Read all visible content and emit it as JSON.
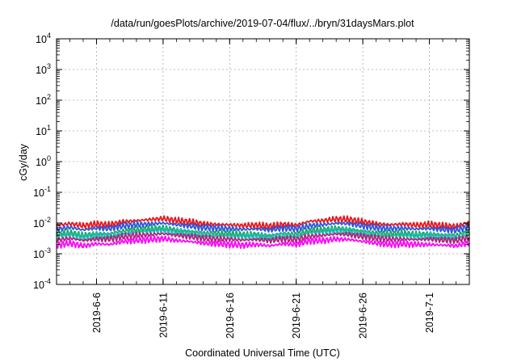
{
  "chart_data": {
    "type": "line",
    "title": "/data/run/goesPlots/archive/2019-07-04/flux/../bryn/31daysMars.plot",
    "xlabel": "Coordinated Universal Time (UTC)",
    "ylabel": "cGy/day",
    "yscale": "log",
    "ylim_exp": [
      -4,
      4
    ],
    "y_ticks": [
      {
        "base": "10",
        "exp": "-4"
      },
      {
        "base": "10",
        "exp": "-3"
      },
      {
        "base": "10",
        "exp": "-2"
      },
      {
        "base": "10",
        "exp": "-1"
      },
      {
        "base": "10",
        "exp": "0"
      },
      {
        "base": "10",
        "exp": "1"
      },
      {
        "base": "10",
        "exp": "2"
      },
      {
        "base": "10",
        "exp": "3"
      },
      {
        "base": "10",
        "exp": "4"
      }
    ],
    "xlim": [
      "2019-06-03",
      "2019-07-04"
    ],
    "x_ticks": [
      "2019-6-6",
      "2019-6-11",
      "2019-6-16",
      "2019-6-21",
      "2019-6-26",
      "2019-7-1"
    ],
    "x_tick_dates": [
      "2019-06-06",
      "2019-06-11",
      "2019-06-16",
      "2019-06-21",
      "2019-06-26",
      "2019-07-01"
    ],
    "grid": true,
    "x_dates": [
      "2019-06-03",
      "2019-06-04",
      "2019-06-05",
      "2019-06-06",
      "2019-06-07",
      "2019-06-08",
      "2019-06-09",
      "2019-06-10",
      "2019-06-11",
      "2019-06-12",
      "2019-06-13",
      "2019-06-14",
      "2019-06-15",
      "2019-06-16",
      "2019-06-17",
      "2019-06-18",
      "2019-06-19",
      "2019-06-20",
      "2019-06-21",
      "2019-06-22",
      "2019-06-23",
      "2019-06-24",
      "2019-06-25",
      "2019-06-26",
      "2019-06-27",
      "2019-06-28",
      "2019-06-29",
      "2019-06-30",
      "2019-07-01",
      "2019-07-02",
      "2019-07-03",
      "2019-07-04"
    ],
    "series": [
      {
        "color": "#e8161b",
        "values": [
          0.0085,
          0.0095,
          0.0082,
          0.0092,
          0.0088,
          0.011,
          0.012,
          0.013,
          0.014,
          0.012,
          0.011,
          0.0095,
          0.009,
          0.0088,
          0.0082,
          0.0085,
          0.0078,
          0.009,
          0.0085,
          0.0115,
          0.012,
          0.0135,
          0.013,
          0.011,
          0.0095,
          0.0088,
          0.0092,
          0.0085,
          0.009,
          0.0082,
          0.0078,
          0.0105
        ]
      },
      {
        "color": "#2c55e0",
        "values": [
          0.0062,
          0.0072,
          0.006,
          0.0068,
          0.0066,
          0.008,
          0.0088,
          0.0092,
          0.01,
          0.0088,
          0.008,
          0.007,
          0.0068,
          0.0066,
          0.0062,
          0.0064,
          0.006,
          0.0068,
          0.0064,
          0.0082,
          0.0088,
          0.0098,
          0.0095,
          0.008,
          0.007,
          0.0066,
          0.0068,
          0.0064,
          0.0066,
          0.0062,
          0.0058,
          0.0076
        ]
      },
      {
        "color": "#17a85f",
        "values": [
          0.0042,
          0.0048,
          0.004,
          0.0046,
          0.0045,
          0.0055,
          0.006,
          0.0064,
          0.0068,
          0.006,
          0.0055,
          0.0048,
          0.0046,
          0.0045,
          0.0042,
          0.0043,
          0.004,
          0.0046,
          0.0043,
          0.0056,
          0.006,
          0.0066,
          0.0064,
          0.0055,
          0.0048,
          0.0045,
          0.0046,
          0.0043,
          0.0045,
          0.0042,
          0.004,
          0.0052
        ]
      },
      {
        "color": "#1fbcb0",
        "values": [
          0.0036,
          0.0041,
          0.0034,
          0.0039,
          0.0038,
          0.0047,
          0.0051,
          0.0054,
          0.0058,
          0.0051,
          0.0047,
          0.0041,
          0.0039,
          0.0038,
          0.0036,
          0.0037,
          0.0034,
          0.0039,
          0.0037,
          0.0048,
          0.0051,
          0.0056,
          0.0054,
          0.0047,
          0.0041,
          0.0038,
          0.0039,
          0.0037,
          0.0038,
          0.0036,
          0.0034,
          0.0044
        ]
      },
      {
        "color": "#b0237e",
        "values": [
          0.0028,
          0.0032,
          0.0027,
          0.003,
          0.003,
          0.0036,
          0.004,
          0.0042,
          0.0045,
          0.004,
          0.0036,
          0.0032,
          0.003,
          0.003,
          0.0028,
          0.0029,
          0.0027,
          0.003,
          0.0029,
          0.0037,
          0.004,
          0.0044,
          0.0042,
          0.0036,
          0.0032,
          0.003,
          0.003,
          0.0029,
          0.003,
          0.0028,
          0.0027,
          0.0034
        ]
      },
      {
        "color": "#ff00ff",
        "values": [
          0.0019,
          0.0022,
          0.0018,
          0.0021,
          0.002,
          0.0025,
          0.0027,
          0.0029,
          0.0031,
          0.0027,
          0.0025,
          0.0022,
          0.0021,
          0.002,
          0.0019,
          0.002,
          0.0018,
          0.0021,
          0.002,
          0.0026,
          0.0027,
          0.003,
          0.0029,
          0.0025,
          0.0022,
          0.002,
          0.0021,
          0.002,
          0.002,
          0.0019,
          0.0018,
          0.0023
        ]
      }
    ]
  }
}
